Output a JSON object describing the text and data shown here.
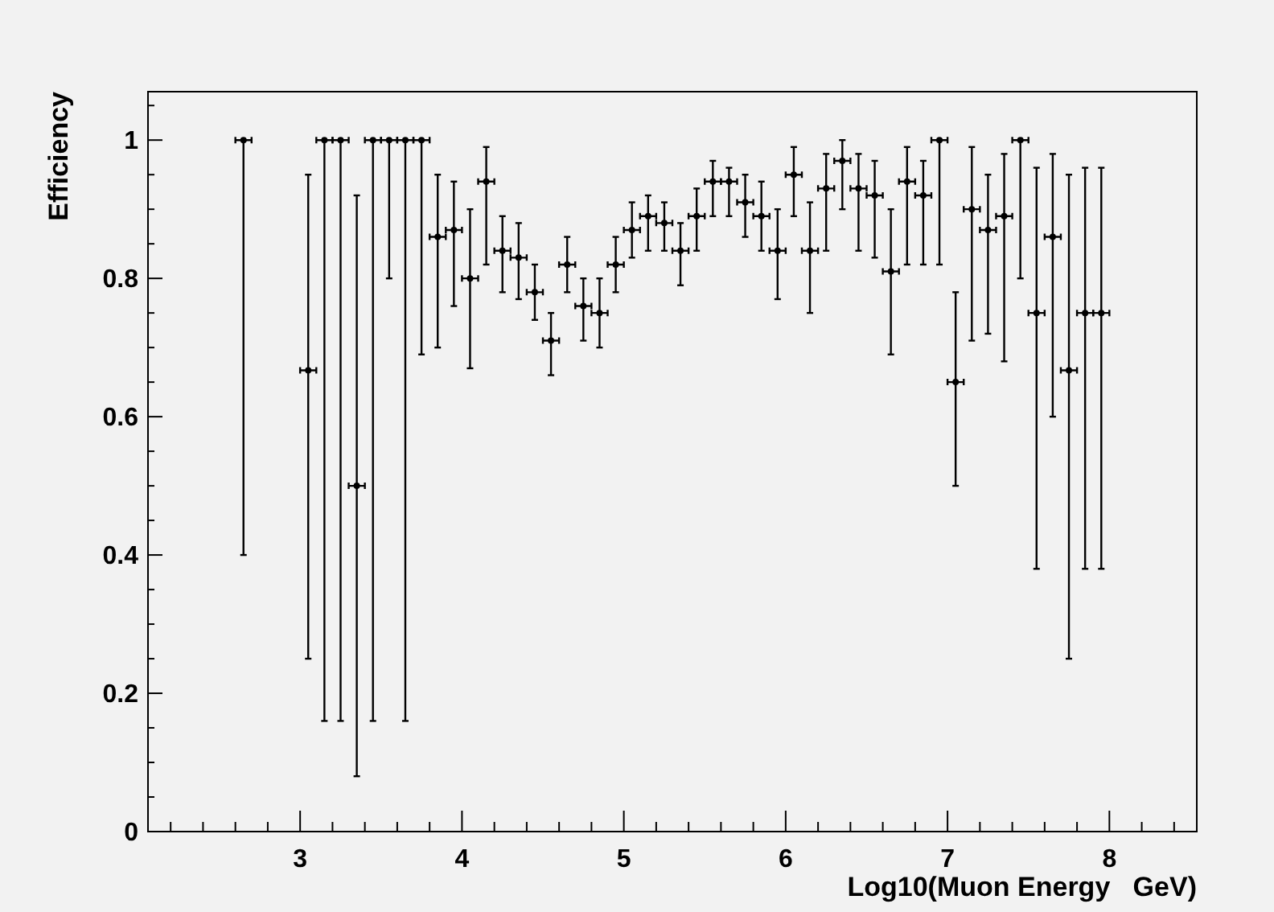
{
  "chart_data": {
    "type": "scatter",
    "xlabel": "Log10(Muon Energy   GeV)",
    "ylabel": "Efficiency",
    "marker": "circle",
    "grid": false,
    "xlim": [
      2.06,
      8.54
    ],
    "ylim": [
      0,
      1.07
    ],
    "xticks": [
      {
        "value": 2.2,
        "label": null
      },
      {
        "value": 2.4,
        "label": null
      },
      {
        "value": 2.6,
        "label": null
      },
      {
        "value": 2.8,
        "label": null
      },
      3,
      {
        "value": 3.2,
        "label": null
      },
      {
        "value": 3.4,
        "label": null
      },
      {
        "value": 3.6,
        "label": null
      },
      {
        "value": 3.8,
        "label": null
      },
      4,
      {
        "value": 4.2,
        "label": null
      },
      {
        "value": 4.4,
        "label": null
      },
      {
        "value": 4.6,
        "label": null
      },
      {
        "value": 4.8,
        "label": null
      },
      5,
      {
        "value": 5.2,
        "label": null
      },
      {
        "value": 5.4,
        "label": null
      },
      {
        "value": 5.6,
        "label": null
      },
      {
        "value": 5.8,
        "label": null
      },
      6,
      {
        "value": 6.2,
        "label": null
      },
      {
        "value": 6.4,
        "label": null
      },
      {
        "value": 6.6,
        "label": null
      },
      {
        "value": 6.8,
        "label": null
      },
      7,
      {
        "value": 7.2,
        "label": null
      },
      {
        "value": 7.4,
        "label": null
      },
      {
        "value": 7.6,
        "label": null
      },
      {
        "value": 7.8,
        "label": null
      },
      8,
      {
        "value": 8.2,
        "label": null
      },
      {
        "value": 8.4,
        "label": null
      }
    ],
    "yticks": [
      0,
      {
        "value": 0.05,
        "label": null
      },
      {
        "value": 0.1,
        "label": null
      },
      {
        "value": 0.15,
        "label": null
      },
      0.2,
      {
        "value": 0.25,
        "label": null
      },
      {
        "value": 0.3,
        "label": null
      },
      {
        "value": 0.35,
        "label": null
      },
      0.4,
      {
        "value": 0.45,
        "label": null
      },
      {
        "value": 0.5,
        "label": null
      },
      {
        "value": 0.55,
        "label": null
      },
      0.6,
      {
        "value": 0.65,
        "label": null
      },
      {
        "value": 0.7,
        "label": null
      },
      {
        "value": 0.75,
        "label": null
      },
      0.8,
      {
        "value": 0.85,
        "label": null
      },
      {
        "value": 0.9,
        "label": null
      },
      {
        "value": 0.95,
        "label": null
      },
      1,
      {
        "value": 1.05,
        "label": null
      }
    ],
    "series": [
      {
        "color": "#000000",
        "x": [
          2.65,
          3.05,
          3.15,
          3.25,
          3.35,
          3.45,
          3.55,
          3.65,
          3.75,
          3.85,
          3.95,
          4.05,
          4.15,
          4.25,
          4.35,
          4.45,
          4.55,
          4.65,
          4.75,
          4.85,
          4.95,
          5.05,
          5.15,
          5.25,
          5.35,
          5.45,
          5.55,
          5.65,
          5.75,
          5.85,
          5.95,
          6.05,
          6.15,
          6.25,
          6.35,
          6.45,
          6.55,
          6.65,
          6.75,
          6.85,
          6.95,
          7.05,
          7.15,
          7.25,
          7.35,
          7.45,
          7.55,
          7.65,
          7.75,
          7.85,
          7.95
        ],
        "values": [
          1,
          0.667,
          1,
          1,
          0.5,
          1,
          1,
          1,
          1,
          0.86,
          0.87,
          0.8,
          0.94,
          0.84,
          0.83,
          0.78,
          0.71,
          0.82,
          0.76,
          0.75,
          0.82,
          0.87,
          0.89,
          0.88,
          0.84,
          0.89,
          0.94,
          0.94,
          0.91,
          0.89,
          0.84,
          0.95,
          0.84,
          0.93,
          0.97,
          0.93,
          0.92,
          0.81,
          0.94,
          0.92,
          1,
          0.65,
          0.9,
          0.87,
          0.89,
          1,
          0.75,
          0.86,
          0.667,
          0.75,
          0.75
        ],
        "errors": [
          [
            0.4,
            1
          ],
          [
            0.25,
            0.95
          ],
          [
            0.16,
            1
          ],
          [
            0.16,
            1
          ],
          [
            0.08,
            0.92
          ],
          [
            0.16,
            1
          ],
          [
            0.8,
            1
          ],
          [
            0.16,
            1
          ],
          [
            0.69,
            1
          ],
          [
            0.7,
            0.95
          ],
          [
            0.76,
            0.94
          ],
          [
            0.67,
            0.9
          ],
          [
            0.82,
            0.99
          ],
          [
            0.78,
            0.89
          ],
          [
            0.77,
            0.88
          ],
          [
            0.74,
            0.82
          ],
          [
            0.66,
            0.75
          ],
          [
            0.78,
            0.86
          ],
          [
            0.71,
            0.8
          ],
          [
            0.7,
            0.8
          ],
          [
            0.78,
            0.86
          ],
          [
            0.83,
            0.91
          ],
          [
            0.84,
            0.92
          ],
          [
            0.84,
            0.91
          ],
          [
            0.79,
            0.88
          ],
          [
            0.84,
            0.93
          ],
          [
            0.89,
            0.97
          ],
          [
            0.89,
            0.96
          ],
          [
            0.86,
            0.95
          ],
          [
            0.84,
            0.94
          ],
          [
            0.77,
            0.9
          ],
          [
            0.89,
            0.99
          ],
          [
            0.75,
            0.91
          ],
          [
            0.84,
            0.98
          ],
          [
            0.9,
            1
          ],
          [
            0.84,
            0.98
          ],
          [
            0.83,
            0.97
          ],
          [
            0.69,
            0.9
          ],
          [
            0.82,
            0.99
          ],
          [
            0.82,
            0.97
          ],
          [
            0.82,
            1
          ],
          [
            0.5,
            0.78
          ],
          [
            0.71,
            0.99
          ],
          [
            0.72,
            0.95
          ],
          [
            0.68,
            0.98
          ],
          [
            0.8,
            1
          ],
          [
            0.38,
            0.96
          ],
          [
            0.6,
            0.98
          ],
          [
            0.25,
            0.95
          ],
          [
            0.38,
            0.96
          ],
          [
            0.38,
            0.96
          ]
        ],
        "xerrors": [
          0.05,
          0.05,
          0.05,
          0.05,
          0.05,
          0.05,
          0.05,
          0.05,
          0.05,
          0.05,
          0.05,
          0.05,
          0.05,
          0.05,
          0.05,
          0.05,
          0.05,
          0.05,
          0.05,
          0.05,
          0.05,
          0.05,
          0.05,
          0.05,
          0.05,
          0.05,
          0.05,
          0.05,
          0.05,
          0.05,
          0.05,
          0.05,
          0.05,
          0.05,
          0.05,
          0.05,
          0.05,
          0.05,
          0.05,
          0.05,
          0.05,
          0.05,
          0.05,
          0.05,
          0.05,
          0.05,
          0.05,
          0.05,
          0.05,
          0.05,
          0.05
        ]
      }
    ]
  }
}
